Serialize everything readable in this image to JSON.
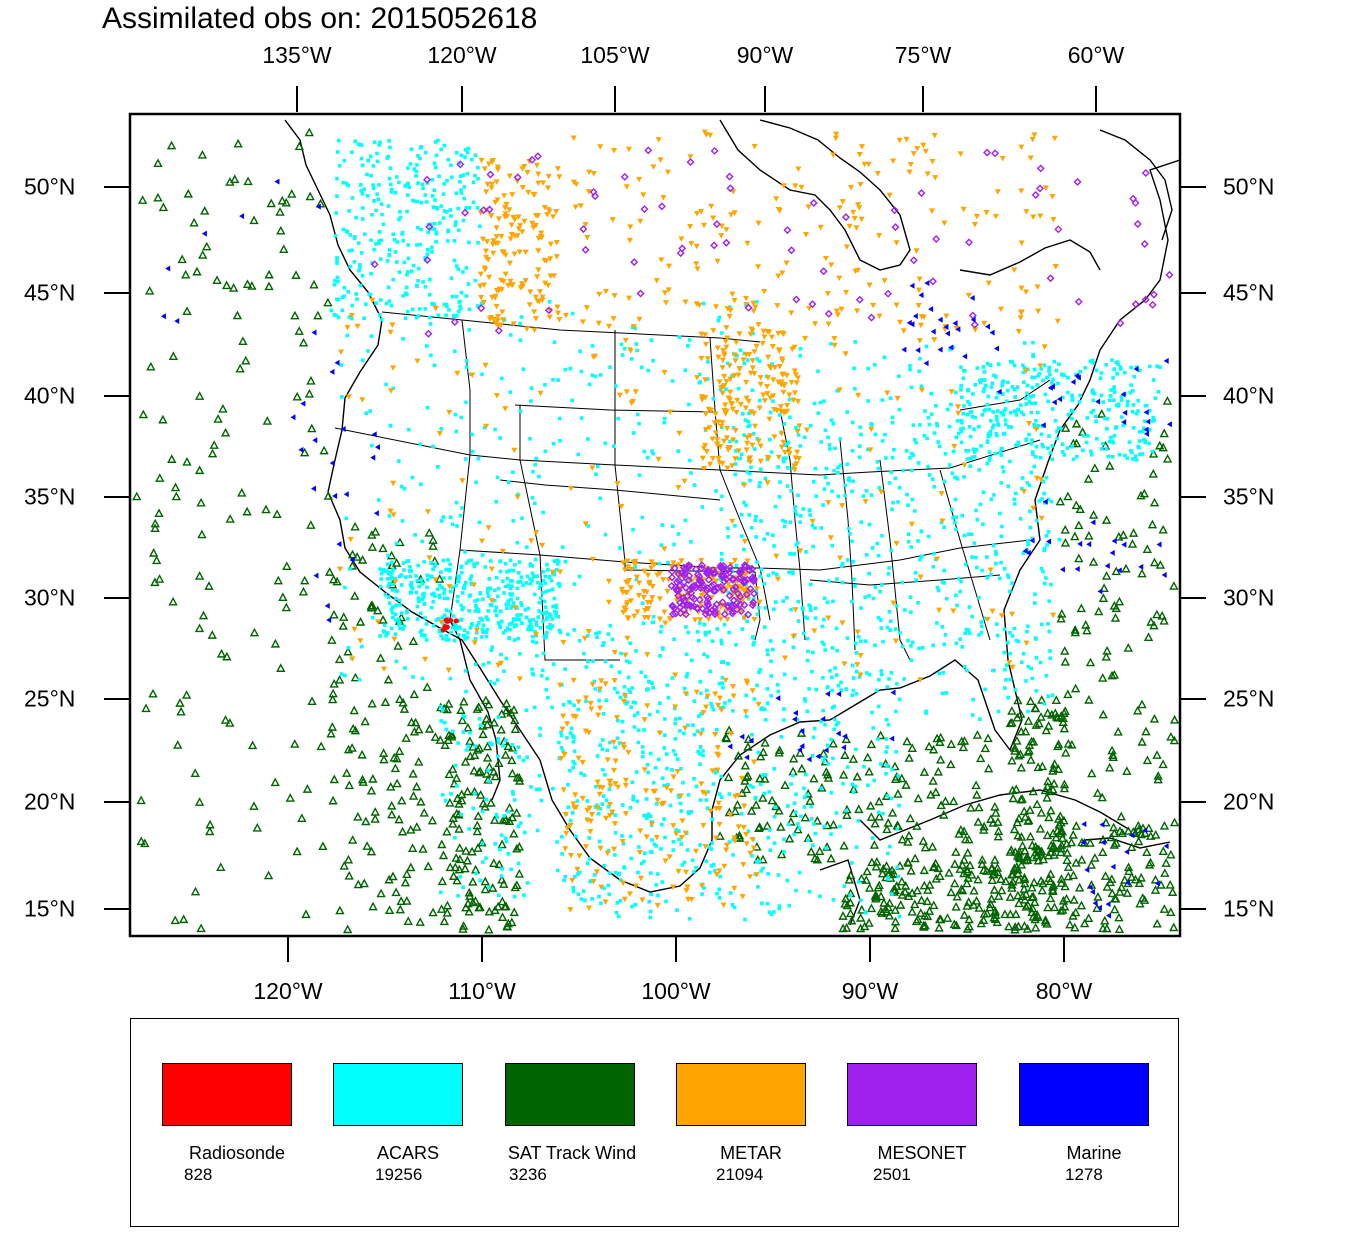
{
  "title": "Assimilated obs on: 2015052618",
  "top_axis": [
    "135°W",
    "120°W",
    "105°W",
    "90°W",
    "75°W",
    "60°W"
  ],
  "bottom_axis": [
    "120°W",
    "110°W",
    "100°W",
    "90°W",
    "80°W"
  ],
  "left_axis": [
    "50°N",
    "45°N",
    "40°N",
    "35°N",
    "30°N",
    "25°N",
    "20°N",
    "15°N"
  ],
  "right_axis": [
    "50°N",
    "45°N",
    "40°N",
    "35°N",
    "30°N",
    "25°N",
    "20°N",
    "15°N"
  ],
  "legend": [
    {
      "name": "Radiosonde",
      "count": "828",
      "color": "#ff0000"
    },
    {
      "name": "ACARS",
      "count": "19256",
      "color": "#00ffff"
    },
    {
      "name": "SAT Track Wind",
      "count": "3236",
      "color": "#006400"
    },
    {
      "name": "METAR",
      "count": "21094",
      "color": "#ffa500"
    },
    {
      "name": "MESONET",
      "count": "2501",
      "color": "#a020f0"
    },
    {
      "name": "Marine",
      "count": "1278",
      "color": "#0000ff"
    }
  ],
  "colors": {
    "frame": "#000000",
    "coast": "#000000",
    "acars": "#00ffff",
    "sat_wind": "#006400",
    "metar": "#ffa500",
    "mesonet": "#a020f0",
    "marine": "#0000ff",
    "radiosonde": "#ff0000"
  }
}
